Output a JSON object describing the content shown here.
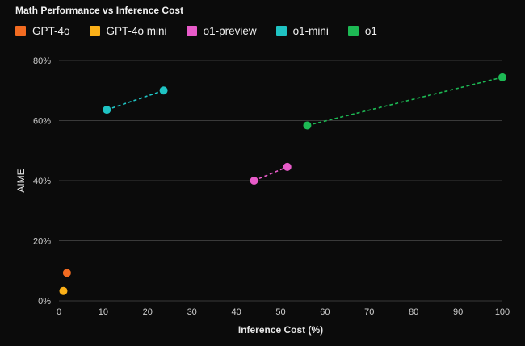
{
  "chart_data": {
    "type": "scatter",
    "title": "Math Performance vs Inference Cost",
    "xlabel": "Inference Cost (%)",
    "ylabel": "AIME",
    "xlim": [
      0,
      100
    ],
    "ylim": [
      0,
      80
    ],
    "xticks": [
      "0",
      "10",
      "20",
      "30",
      "40",
      "50",
      "60",
      "70",
      "80",
      "90",
      "100"
    ],
    "yticks": [
      "0%",
      "20%",
      "40%",
      "60%",
      "80%"
    ],
    "grid": true,
    "legend_position": "top-left",
    "series": [
      {
        "name": "GPT-4o",
        "color": "#f26b21",
        "points": [
          [
            1.8,
            9.3
          ]
        ],
        "connected": false
      },
      {
        "name": "GPT-4o mini",
        "color": "#fbb018",
        "points": [
          [
            1.0,
            3.3
          ]
        ],
        "connected": false
      },
      {
        "name": "o1-preview",
        "color": "#e85bc9",
        "points": [
          [
            44.0,
            40.0
          ],
          [
            51.5,
            44.6
          ]
        ],
        "connected": true
      },
      {
        "name": "o1-mini",
        "color": "#1fc3c3",
        "points": [
          [
            10.8,
            63.6
          ],
          [
            23.6,
            70.0
          ]
        ],
        "connected": true
      },
      {
        "name": "o1",
        "color": "#1db954",
        "points": [
          [
            56.0,
            58.4
          ],
          [
            100.0,
            74.4
          ]
        ],
        "connected": true
      }
    ]
  }
}
